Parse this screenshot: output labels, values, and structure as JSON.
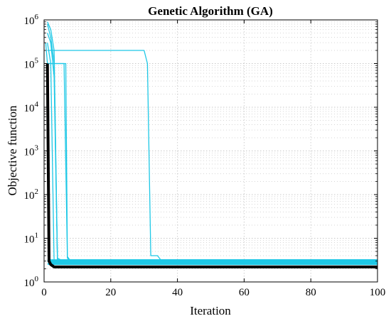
{
  "chart_data": {
    "type": "line",
    "title": "Genetic Algorithm (GA)",
    "xlabel": "Iteration",
    "ylabel": "Objective function",
    "xlim": [
      0,
      100
    ],
    "ylim": [
      1,
      1000000
    ],
    "yscale": "log",
    "grid": "major and minor, dotted",
    "x_ticks": [
      "0",
      "20",
      "40",
      "60",
      "80",
      "100"
    ],
    "y_ticks": [
      {
        "base": "10",
        "exp": "0"
      },
      {
        "base": "10",
        "exp": "1"
      },
      {
        "base": "10",
        "exp": "2"
      },
      {
        "base": "10",
        "exp": "3"
      },
      {
        "base": "10",
        "exp": "4"
      },
      {
        "base": "10",
        "exp": "5"
      },
      {
        "base": "10",
        "exp": "6"
      }
    ],
    "colors": {
      "runs": "#1ec8e6",
      "best": "#000000"
    },
    "series": [
      {
        "role": "run",
        "x": [
          1,
          2,
          3,
          4,
          5,
          100
        ],
        "y": [
          900000,
          600000,
          200000,
          3.5,
          3.2,
          3.2
        ]
      },
      {
        "role": "run",
        "x": [
          1,
          2,
          3,
          4,
          100
        ],
        "y": [
          800000,
          400000,
          100000,
          3.2,
          3.2
        ]
      },
      {
        "role": "run",
        "x": [
          1,
          2,
          3,
          4,
          100
        ],
        "y": [
          500000,
          300000,
          50000,
          3.0,
          3.0
        ]
      },
      {
        "role": "run",
        "x": [
          1,
          2,
          3,
          100
        ],
        "y": [
          300000,
          100000,
          3.0,
          3.0
        ]
      },
      {
        "role": "run",
        "x": [
          1,
          5,
          6,
          7,
          8,
          100
        ],
        "y": [
          100000,
          100000,
          100000,
          3.5,
          3.0,
          3.0
        ]
      },
      {
        "role": "run",
        "x": [
          0.5,
          1,
          6.5,
          7,
          8,
          100
        ],
        "y": [
          300000,
          100000,
          100000,
          3.8,
          3.0,
          3.0
        ]
      },
      {
        "role": "run",
        "x": [
          1,
          2,
          30,
          31,
          32,
          34,
          35,
          100
        ],
        "y": [
          200000,
          200000,
          200000,
          100000,
          4.0,
          4.0,
          3.2,
          3.2
        ]
      },
      {
        "role": "run",
        "x": [
          1,
          2,
          100
        ],
        "y": [
          3.0,
          2.8,
          2.8
        ]
      },
      {
        "role": "run",
        "x": [
          1,
          2,
          100
        ],
        "y": [
          2.6,
          2.5,
          2.5
        ]
      },
      {
        "role": "run",
        "x": [
          1,
          3,
          100
        ],
        "y": [
          3.2,
          2.7,
          2.7
        ]
      },
      {
        "role": "best",
        "x": [
          1,
          1.5,
          2,
          3,
          100
        ],
        "y": [
          100000,
          3.0,
          2.5,
          2.2,
          2.2
        ]
      }
    ]
  }
}
